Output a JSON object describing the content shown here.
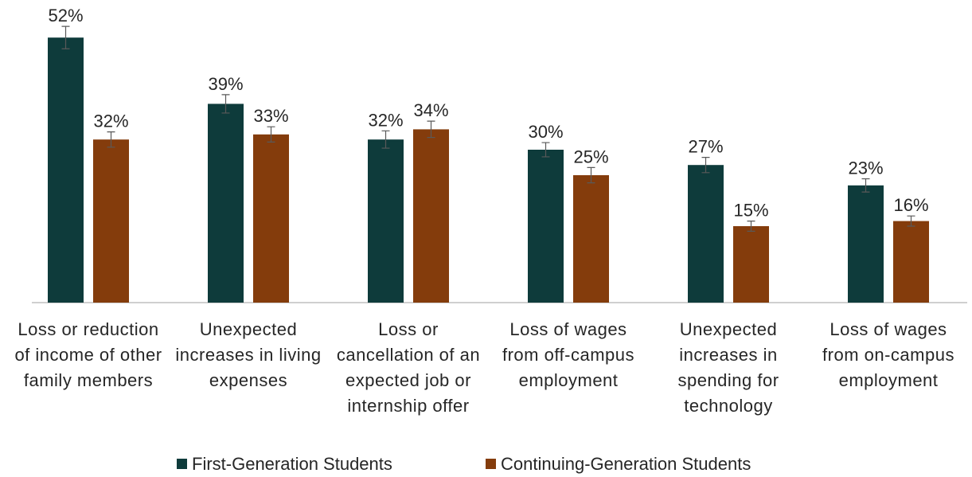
{
  "chart_data": {
    "type": "bar",
    "categories": [
      "Loss or reduction of income of other family members",
      "Unexpected increases in living expenses",
      "Loss or cancellation of an expected job or internship offer",
      "Loss of wages from off-campus employment",
      "Unexpected increases in spending for technology",
      "Loss of wages from on-campus employment"
    ],
    "series": [
      {
        "name": "First-Generation Students",
        "color": "#0e3b3b",
        "values": [
          52,
          39,
          32,
          30,
          27,
          23
        ],
        "value_labels": [
          "52%",
          "39%",
          "32%",
          "30%",
          "27%",
          "23%"
        ],
        "errors": [
          2.2,
          1.8,
          1.7,
          1.4,
          1.5,
          1.3
        ]
      },
      {
        "name": "Continuing-Generation Students",
        "color": "#843c0c",
        "values": [
          32,
          33,
          34,
          25,
          15,
          16
        ],
        "value_labels": [
          "32%",
          "33%",
          "34%",
          "25%",
          "15%",
          "16%"
        ],
        "errors": [
          1.5,
          1.5,
          1.6,
          1.5,
          1.0,
          1.0
        ]
      }
    ],
    "legend": "bottom"
  }
}
